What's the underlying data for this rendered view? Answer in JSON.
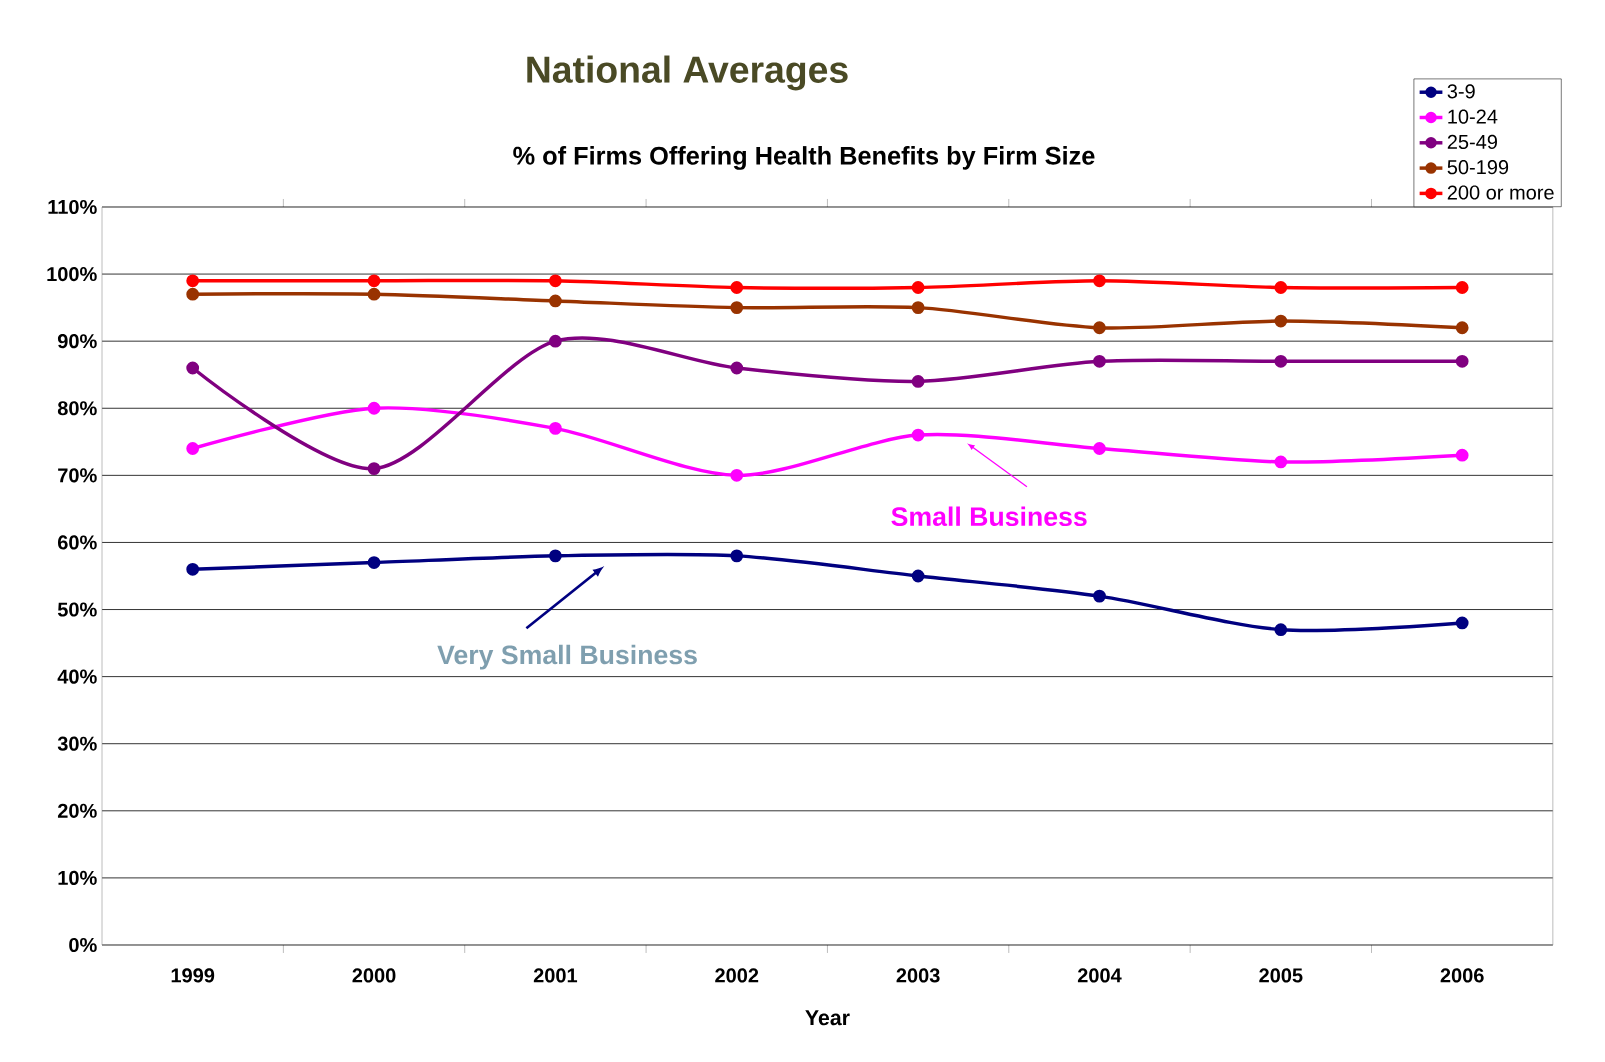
{
  "chart_data": {
    "type": "line",
    "title": "National Averages",
    "subtitle": "% of Firms Offering Health Benefits by Firm Size",
    "xlabel": "Year",
    "categories": [
      "1999",
      "2000",
      "2001",
      "2002",
      "2003",
      "2004",
      "2005",
      "2006"
    ],
    "series": [
      {
        "name": "3-9",
        "color": "#000080",
        "values": [
          56,
          57,
          58,
          58,
          55,
          52,
          47,
          48
        ]
      },
      {
        "name": "10-24",
        "color": "#ff00ff",
        "values": [
          74,
          80,
          77,
          70,
          76,
          74,
          72,
          73
        ]
      },
      {
        "name": "25-49",
        "color": "#800080",
        "values": [
          86,
          71,
          90,
          86,
          84,
          87,
          87,
          87
        ]
      },
      {
        "name": "50-199",
        "color": "#993300",
        "values": [
          97,
          97,
          96,
          95,
          95,
          92,
          93,
          92
        ]
      },
      {
        "name": "200 or more",
        "color": "#ff0000",
        "values": [
          99,
          99,
          99,
          98,
          98,
          99,
          98,
          98
        ]
      }
    ],
    "ylim": [
      0,
      110
    ],
    "yticks": [
      {
        "value": 0,
        "label": "0%"
      },
      {
        "value": 10,
        "label": "10%"
      },
      {
        "value": 20,
        "label": "20%"
      },
      {
        "value": 30,
        "label": "30%"
      },
      {
        "value": 40,
        "label": "40%"
      },
      {
        "value": 50,
        "label": "50%"
      },
      {
        "value": 60,
        "label": "60%"
      },
      {
        "value": 70,
        "label": "70%"
      },
      {
        "value": 80,
        "label": "80%"
      },
      {
        "value": 90,
        "label": "90%"
      },
      {
        "value": 100,
        "label": "100%"
      },
      {
        "value": 110,
        "label": "110%"
      }
    ],
    "grid": "y",
    "legend": "top right",
    "marker": "circle",
    "annotations": [
      "Small Business",
      "Very Small Business"
    ]
  }
}
